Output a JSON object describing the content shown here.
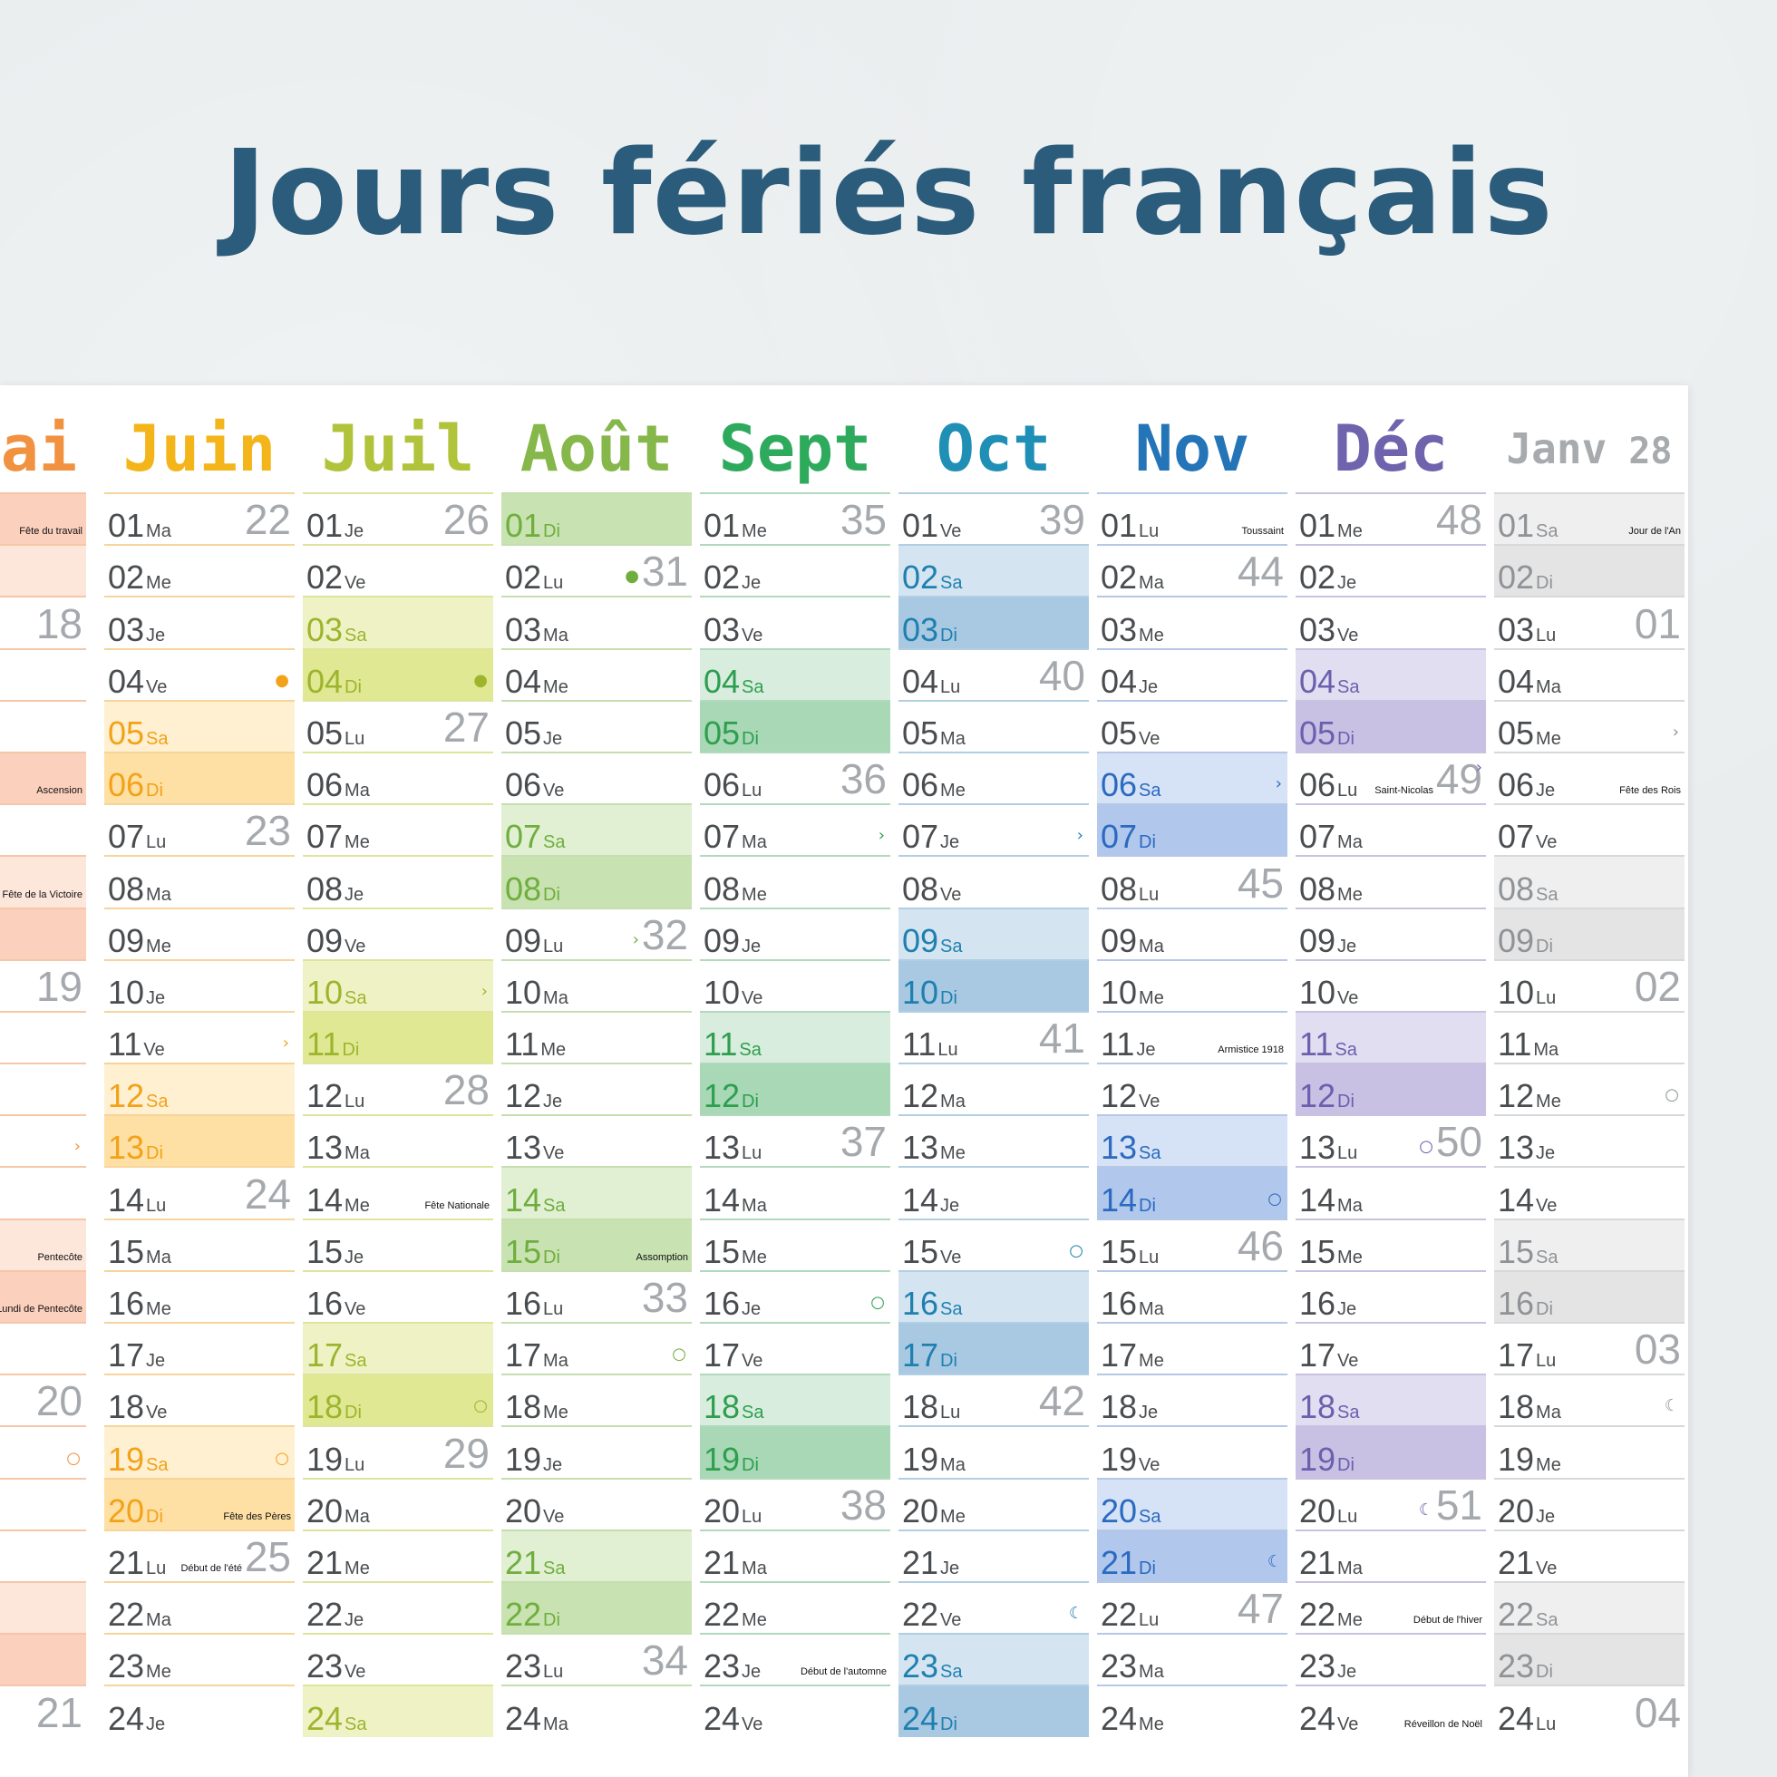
{
  "title": "Jours fériés français",
  "months": [
    {
      "key": "mai",
      "label": "ai",
      "color": "#f0923f",
      "weeks": [
        "",
        "",
        "18",
        "",
        "",
        "",
        "",
        "",
        "",
        "19",
        "",
        "",
        "",
        "",
        "",
        "",
        "",
        "20",
        "",
        "",
        "",
        "",
        "",
        "21"
      ],
      "holidays": {
        "0": "Fête du travail",
        "5": "Ascension",
        "7": "Fête de la Victoire",
        "14": "Pentecôte",
        "15": "Lundi de Pentecôte"
      },
      "moons": {
        "12": "›",
        "18": "○"
      }
    },
    {
      "key": "juin",
      "label": "Juin",
      "color": "#f4b51a",
      "days": [
        "01 Ma",
        "02 Me",
        "03 Je",
        "04 Ve",
        "05 Sa",
        "06 Di",
        "07 Lu",
        "08 Ma",
        "09 Me",
        "10 Je",
        "11 Ve",
        "12 Sa",
        "13 Di",
        "14 Lu",
        "15 Ma",
        "16 Me",
        "17 Je",
        "18 Ve",
        "19 Sa",
        "20 Di",
        "21 Lu",
        "22 Ma",
        "23 Me",
        "24 Je"
      ],
      "weeks": {
        "0": "22",
        "6": "23",
        "13": "24",
        "20": "25"
      },
      "holidays": {
        "19": "Fête des Pères",
        "20": "Début de l'été"
      },
      "moons": {
        "3": "●",
        "10": "›",
        "18": "○"
      }
    },
    {
      "key": "juil",
      "label": "Juil",
      "color": "#b0c33a",
      "days": [
        "01 Je",
        "02 Ve",
        "03 Sa",
        "04 Di",
        "05 Lu",
        "06 Ma",
        "07 Me",
        "08 Je",
        "09 Ve",
        "10 Sa",
        "11 Di",
        "12 Lu",
        "13 Ma",
        "14 Me",
        "15 Je",
        "16 Ve",
        "17 Sa",
        "18 Di",
        "19 Lu",
        "20 Ma",
        "21 Me",
        "22 Je",
        "23 Ve",
        "24 Sa"
      ],
      "weeks": {
        "0": "26",
        "4": "27",
        "11": "28",
        "18": "29"
      },
      "holidays": {
        "13": "Fête Nationale"
      },
      "moons": {
        "3": "●",
        "9": "›",
        "17": "○"
      }
    },
    {
      "key": "aout",
      "label": "Août",
      "color": "#86b74a",
      "days": [
        "01 Di",
        "02 Lu",
        "03 Ma",
        "04 Me",
        "05 Je",
        "06 Ve",
        "07 Sa",
        "08 Di",
        "09 Lu",
        "10 Ma",
        "11 Me",
        "12 Je",
        "13 Ve",
        "14 Sa",
        "15 Di",
        "16 Lu",
        "17 Ma",
        "18 Me",
        "19 Je",
        "20 Ve",
        "21 Sa",
        "22 Di",
        "23 Lu",
        "24 Ma"
      ],
      "weeks": {
        "1": "31",
        "8": "32",
        "15": "33",
        "22": "34"
      },
      "holidays": {
        "14": "Assomption"
      },
      "moons": {
        "1": "●",
        "8": "›",
        "16": "○"
      }
    },
    {
      "key": "sept",
      "label": "Sept",
      "color": "#2eaa5c",
      "days": [
        "01 Me",
        "02 Je",
        "03 Ve",
        "04 Sa",
        "05 Di",
        "06 Lu",
        "07 Ma",
        "08 Me",
        "09 Je",
        "10 Ve",
        "11 Sa",
        "12 Di",
        "13 Lu",
        "14 Ma",
        "15 Me",
        "16 Je",
        "17 Ve",
        "18 Sa",
        "19 Di",
        "20 Lu",
        "21 Ma",
        "22 Me",
        "23 Je",
        "24 Ve"
      ],
      "weeks": {
        "0": "35",
        "5": "36",
        "12": "37",
        "19": "38"
      },
      "holidays": {
        "22": "Début de l'automne"
      },
      "moons": {
        "6": "›",
        "15": "○"
      }
    },
    {
      "key": "oct",
      "label": "Oct",
      "color": "#1f8fb6",
      "days": [
        "01 Ve",
        "02 Sa",
        "03 Di",
        "04 Lu",
        "05 Ma",
        "06 Me",
        "07 Je",
        "08 Ve",
        "09 Sa",
        "10 Di",
        "11 Lu",
        "12 Ma",
        "13 Me",
        "14 Je",
        "15 Ve",
        "16 Sa",
        "17 Di",
        "18 Lu",
        "19 Ma",
        "20 Me",
        "21 Je",
        "22 Ve",
        "23 Sa",
        "24 Di"
      ],
      "weeks": {
        "0": "39",
        "3": "40",
        "10": "41",
        "17": "42"
      },
      "holidays": {},
      "moons": {
        "6": "›",
        "14": "○",
        "21": "☾"
      }
    },
    {
      "key": "nov",
      "label": "Nov",
      "color": "#2474b8",
      "days": [
        "01 Lu",
        "02 Ma",
        "03 Me",
        "04 Je",
        "05 Ve",
        "06 Sa",
        "07 Di",
        "08 Lu",
        "09 Ma",
        "10 Me",
        "11 Je",
        "12 Ve",
        "13 Sa",
        "14 Di",
        "15 Lu",
        "16 Ma",
        "17 Me",
        "18 Je",
        "19 Ve",
        "20 Sa",
        "21 Di",
        "22 Lu",
        "23 Ma",
        "24 Me"
      ],
      "weeks": {
        "1": "44",
        "7": "45",
        "14": "46",
        "21": "47"
      },
      "holidays": {
        "0": "Toussaint",
        "10": "Armistice 1918"
      },
      "moons": {
        "5": "›",
        "13": "○",
        "20": "☾"
      }
    },
    {
      "key": "dec",
      "label": "Déc",
      "color": "#6f63ad",
      "days": [
        "01 Me",
        "02 Je",
        "03 Ve",
        "04 Sa",
        "05 Di",
        "06 Lu",
        "07 Ma",
        "08 Me",
        "09 Je",
        "10 Ve",
        "11 Sa",
        "12 Di",
        "13 Lu",
        "14 Ma",
        "15 Me",
        "16 Je",
        "17 Ve",
        "18 Sa",
        "19 Di",
        "20 Lu",
        "21 Ma",
        "22 Me",
        "23 Je",
        "24 Ve"
      ],
      "weeks": {
        "0": "48",
        "5": "49",
        "12": "50",
        "19": "51"
      },
      "holidays": {
        "5": "Saint-Nicolas",
        "21": "Début de l'hiver",
        "23": "Réveillon de Noël"
      },
      "moons": {
        "5": "›",
        "12": "○",
        "19": "☾"
      }
    },
    {
      "key": "janv",
      "label": "Janv",
      "sub": "28",
      "color": "#a8abae",
      "days": [
        "01 Sa",
        "02 Di",
        "03 Lu",
        "04 Ma",
        "05 Me",
        "06 Je",
        "07 Ve",
        "08 Sa",
        "09 Di",
        "10 Lu",
        "11 Ma",
        "12 Me",
        "13 Je",
        "14 Ve",
        "15 Sa",
        "16 Di",
        "17 Lu",
        "18 Ma",
        "19 Me",
        "20 Je",
        "21 Ve",
        "22 Sa",
        "23 Di",
        "24 Lu"
      ],
      "weeks": {
        "2": "01",
        "9": "02",
        "16": "03",
        "23": "04"
      },
      "holidays": {
        "0": "Jour de l'An",
        "5": "Fête des Rois"
      },
      "moons": {
        "4": "›",
        "11": "○",
        "17": "☾"
      }
    }
  ],
  "styles": {
    "mai": {
      "text": "#f0923f",
      "sat": "#fde6da",
      "sun": "#fbd0bd",
      "line": "#f6c6a8"
    },
    "juin": {
      "text": "#f2a219",
      "sat": "#fff0d2",
      "sun": "#ffe0a4",
      "line": "#f6d49a"
    },
    "juil": {
      "text": "#9cb52d",
      "sat": "#eff2c5",
      "sun": "#e1e893",
      "line": "#dfe49d"
    },
    "aout": {
      "text": "#6fae3e",
      "sat": "#e1efd3",
      "sun": "#c8e2b2",
      "line": "#c5deb0"
    },
    "sept": {
      "text": "#2e9e4f",
      "sat": "#d8edde",
      "sun": "#a8d8b5",
      "line": "#b1d9bd"
    },
    "oct": {
      "text": "#1f80b0",
      "sat": "#d4e5f1",
      "sun": "#a9c9e2",
      "line": "#b1cee2"
    },
    "nov": {
      "text": "#2a6ac0",
      "sat": "#d6e2f5",
      "sun": "#b1c7ec",
      "line": "#b6c8e6"
    },
    "dec": {
      "text": "#6a60ad",
      "sat": "#e2def1",
      "sun": "#c9c1e4",
      "line": "#c8c2e0"
    },
    "janv": {
      "text": "#8f9397",
      "sat": "#efefef",
      "sun": "#e4e4e4",
      "line": "#d6d8da"
    }
  }
}
